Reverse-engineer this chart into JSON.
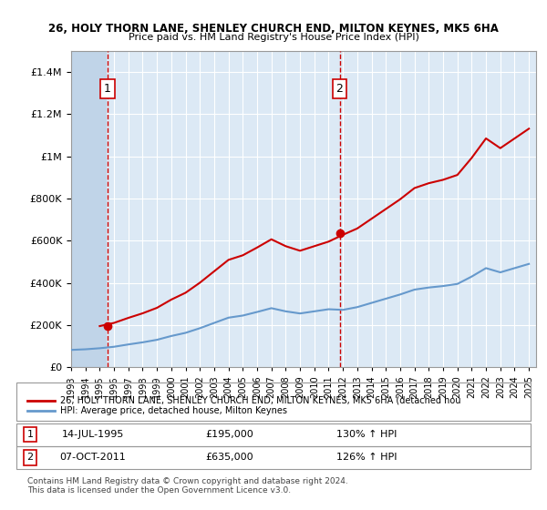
{
  "title1": "26, HOLY THORN LANE, SHENLEY CHURCH END, MILTON KEYNES, MK5 6HA",
  "title2": "Price paid vs. HM Land Registry's House Price Index (HPI)",
  "sale1_date": "14-JUL-1995",
  "sale1_price": 195000,
  "sale1_label": "1",
  "sale1_hpi_pct": "130% ↑ HPI",
  "sale2_date": "07-OCT-2011",
  "sale2_price": 635000,
  "sale2_label": "2",
  "sale2_hpi_pct": "126% ↑ HPI",
  "legend1": "26, HOLY THORN LANE, SHENLEY CHURCH END, MILTON KEYNES, MK5 6HA (detached hou",
  "legend2": "HPI: Average price, detached house, Milton Keynes",
  "footnote": "Contains HM Land Registry data © Crown copyright and database right 2024.\nThis data is licensed under the Open Government Licence v3.0.",
  "ylim": [
    0,
    1500000
  ],
  "bg_color": "#dce9f5",
  "hatch_color": "#c0d4e8",
  "line_red": "#cc0000",
  "line_blue": "#6699cc"
}
